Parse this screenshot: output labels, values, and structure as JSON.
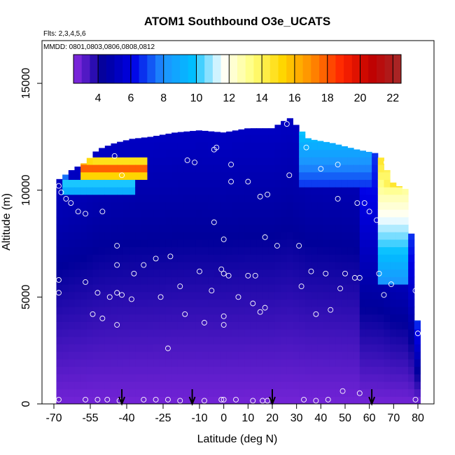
{
  "chart_data": {
    "type": "heatmap",
    "title": "ATOM1 Southbound O3e_UCATS",
    "flights_note": "Flts: 2,3,4,5,6",
    "dates_note": "MMDD: 0801,0803,0806,0808,0812",
    "xlabel": "Latitude (deg N)",
    "ylabel": "Altitude (m)",
    "xlim": [
      -70,
      80
    ],
    "ylim": [
      0,
      17000
    ],
    "x_ticks": [
      "-70",
      "-55",
      "-40",
      "-25",
      "-10",
      "0",
      "10",
      "20",
      "30",
      "40",
      "50",
      "60",
      "70",
      "80"
    ],
    "x_tick_values": [
      -70,
      -55,
      -40,
      -25,
      -10,
      0,
      10,
      20,
      30,
      40,
      50,
      60,
      70,
      80
    ],
    "y_ticks": [
      "0",
      "5000",
      "10000",
      "15000"
    ],
    "y_tick_values": [
      0,
      5000,
      10000,
      15000
    ],
    "colorbar": {
      "ticks": [
        "4",
        "6",
        "8",
        "10",
        "12",
        "14",
        "16",
        "18",
        "20",
        "22"
      ],
      "tick_values": [
        4,
        6,
        8,
        10,
        12,
        14,
        16,
        18,
        20,
        22
      ],
      "range": [
        2.5,
        22.5
      ],
      "colors": [
        "#8a2be2",
        "#00009a",
        "#0000e6",
        "#1e90ff",
        "#00bfff",
        "#ffffff",
        "#ffff80",
        "#ffd700",
        "#ff8c00",
        "#ff2400",
        "#c00000",
        "#a52a2a"
      ]
    },
    "profile_arrows_lat": [
      -42,
      -13,
      20,
      61
    ],
    "columns": [
      {
        "lat": -68,
        "top": 10500
      },
      {
        "lat": -62,
        "top": 11000
      },
      {
        "lat": -57,
        "top": 11300
      },
      {
        "lat": -52,
        "top": 11900
      },
      {
        "lat": -45,
        "top": 12200
      },
      {
        "lat": -38,
        "top": 12400
      },
      {
        "lat": -30,
        "top": 12500
      },
      {
        "lat": -20,
        "top": 12700
      },
      {
        "lat": -10,
        "top": 12800
      },
      {
        "lat": 0,
        "top": 12700
      },
      {
        "lat": 10,
        "top": 12900
      },
      {
        "lat": 20,
        "top": 12900
      },
      {
        "lat": 27,
        "top": 13400
      },
      {
        "lat": 35,
        "top": 12400
      },
      {
        "lat": 45,
        "top": 12200
      },
      {
        "lat": 55,
        "top": 11900
      },
      {
        "lat": 64,
        "top": 11700
      },
      {
        "lat": 70,
        "top": 10300
      },
      {
        "lat": 76,
        "top": 10000
      },
      {
        "lat": 80,
        "top": 3500
      }
    ],
    "upper_features": [
      {
        "name": "southern-high-band",
        "lat_range": [
          -58,
          -31
        ],
        "alt": 11000,
        "value": 18
      },
      {
        "name": "southern-mid-band",
        "lat_range": [
          -66,
          -37
        ],
        "alt": 10200,
        "value": 11
      },
      {
        "name": "northern-high-wall",
        "lat_range": [
          66,
          76
        ],
        "alt": 10200,
        "value": 15
      }
    ],
    "samples": [
      {
        "lat": -68,
        "alt": 10200
      },
      {
        "lat": -67,
        "alt": 9900
      },
      {
        "lat": -65,
        "alt": 9600
      },
      {
        "lat": -63,
        "alt": 9400
      },
      {
        "lat": -60,
        "alt": 9000
      },
      {
        "lat": -57,
        "alt": 8900
      },
      {
        "lat": -50,
        "alt": 9000
      },
      {
        "lat": -45,
        "alt": 11600
      },
      {
        "lat": -42,
        "alt": 10700
      },
      {
        "lat": -44,
        "alt": 7400
      },
      {
        "lat": -44,
        "alt": 6500
      },
      {
        "lat": -37,
        "alt": 6100
      },
      {
        "lat": -33,
        "alt": 6500
      },
      {
        "lat": -28,
        "alt": 6800
      },
      {
        "lat": -22,
        "alt": 6900
      },
      {
        "lat": -15,
        "alt": 11400
      },
      {
        "lat": -12,
        "alt": 11300
      },
      {
        "lat": -4,
        "alt": 11900
      },
      {
        "lat": 3,
        "alt": 11200
      },
      {
        "lat": -3,
        "alt": 12000
      },
      {
        "lat": -4,
        "alt": 8500
      },
      {
        "lat": 0,
        "alt": 7700
      },
      {
        "lat": 3,
        "alt": 10400
      },
      {
        "lat": 10,
        "alt": 10400
      },
      {
        "lat": 15,
        "alt": 9700
      },
      {
        "lat": 18,
        "alt": 9800
      },
      {
        "lat": 17,
        "alt": 7800
      },
      {
        "lat": 22,
        "alt": 7400
      },
      {
        "lat": 27,
        "alt": 10700
      },
      {
        "lat": 26,
        "alt": 13100
      },
      {
        "lat": 34,
        "alt": 12000
      },
      {
        "lat": 40,
        "alt": 11000
      },
      {
        "lat": 47,
        "alt": 11200
      },
      {
        "lat": 47,
        "alt": 9600
      },
      {
        "lat": 55,
        "alt": 9400
      },
      {
        "lat": 58,
        "alt": 9400
      },
      {
        "lat": 60,
        "alt": 9000
      },
      {
        "lat": 63,
        "alt": 8600
      },
      {
        "lat": 67,
        "alt": 11300
      },
      {
        "lat": 78,
        "alt": 9700
      },
      {
        "lat": 31,
        "alt": 7400
      },
      {
        "lat": -68,
        "alt": 5800
      },
      {
        "lat": -68,
        "alt": 5200
      },
      {
        "lat": -57,
        "alt": 5700
      },
      {
        "lat": -54,
        "alt": 4200
      },
      {
        "lat": -52,
        "alt": 5200
      },
      {
        "lat": -50,
        "alt": 4000
      },
      {
        "lat": -47,
        "alt": 5000
      },
      {
        "lat": -44,
        "alt": 5200
      },
      {
        "lat": -42,
        "alt": 5100
      },
      {
        "lat": -44,
        "alt": 3700
      },
      {
        "lat": -38,
        "alt": 4900
      },
      {
        "lat": -26,
        "alt": 5000
      },
      {
        "lat": -18,
        "alt": 5500
      },
      {
        "lat": -16,
        "alt": 4200
      },
      {
        "lat": -10,
        "alt": 6200
      },
      {
        "lat": -8,
        "alt": 3800
      },
      {
        "lat": -5,
        "alt": 5300
      },
      {
        "lat": -1,
        "alt": 6300
      },
      {
        "lat": 0,
        "alt": 6100
      },
      {
        "lat": 2,
        "alt": 6000
      },
      {
        "lat": 0,
        "alt": 4100
      },
      {
        "lat": 0,
        "alt": 3700
      },
      {
        "lat": 6,
        "alt": 5000
      },
      {
        "lat": 10,
        "alt": 6000
      },
      {
        "lat": 13,
        "alt": 6000
      },
      {
        "lat": 12,
        "alt": 4700
      },
      {
        "lat": 15,
        "alt": 4300
      },
      {
        "lat": 17,
        "alt": 4500
      },
      {
        "lat": 32,
        "alt": 5500
      },
      {
        "lat": 36,
        "alt": 6200
      },
      {
        "lat": 38,
        "alt": 4200
      },
      {
        "lat": 42,
        "alt": 6100
      },
      {
        "lat": 44,
        "alt": 4400
      },
      {
        "lat": 48,
        "alt": 5400
      },
      {
        "lat": 50,
        "alt": 6100
      },
      {
        "lat": 54,
        "alt": 5900
      },
      {
        "lat": 56,
        "alt": 5900
      },
      {
        "lat": 64,
        "alt": 6100
      },
      {
        "lat": 66,
        "alt": 5100
      },
      {
        "lat": 69,
        "alt": 5600
      },
      {
        "lat": 79,
        "alt": 5300
      },
      {
        "lat": 80,
        "alt": 3300
      },
      {
        "lat": -23,
        "alt": 2600
      },
      {
        "lat": -68,
        "alt": 200
      },
      {
        "lat": -57,
        "alt": 200
      },
      {
        "lat": -52,
        "alt": 200
      },
      {
        "lat": -48,
        "alt": 200
      },
      {
        "lat": -43,
        "alt": 150
      },
      {
        "lat": -33,
        "alt": 200
      },
      {
        "lat": -28,
        "alt": 200
      },
      {
        "lat": -23,
        "alt": 200
      },
      {
        "lat": -18,
        "alt": 150
      },
      {
        "lat": -8,
        "alt": 150
      },
      {
        "lat": -1,
        "alt": 200
      },
      {
        "lat": 0,
        "alt": 200
      },
      {
        "lat": 5,
        "alt": 200
      },
      {
        "lat": 12,
        "alt": 150
      },
      {
        "lat": 16,
        "alt": 150
      },
      {
        "lat": 18,
        "alt": 150
      },
      {
        "lat": 33,
        "alt": 200
      },
      {
        "lat": 38,
        "alt": 150
      },
      {
        "lat": 43,
        "alt": 200
      },
      {
        "lat": 49,
        "alt": 600
      },
      {
        "lat": 56,
        "alt": 500
      },
      {
        "lat": 79,
        "alt": 200
      }
    ]
  }
}
